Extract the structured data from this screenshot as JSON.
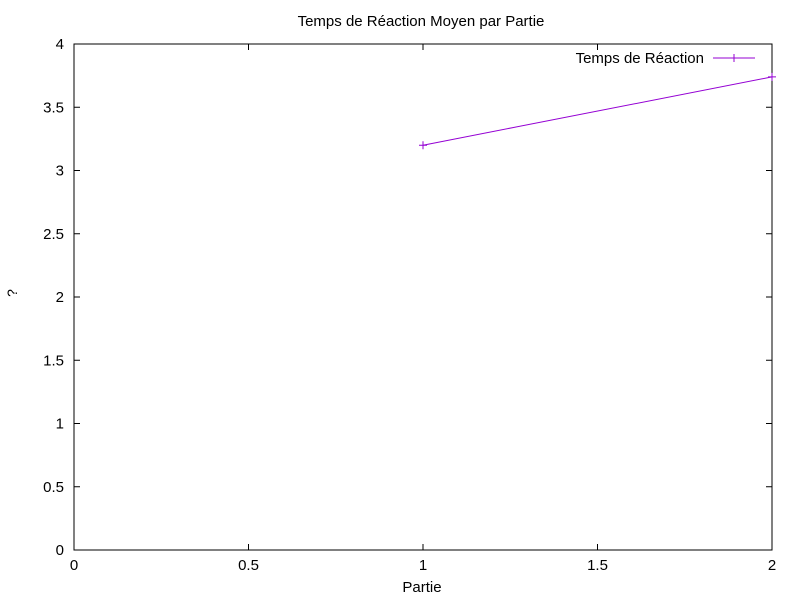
{
  "chart_data": {
    "type": "line",
    "title": "Temps de Réaction Moyen par Partie",
    "xlabel": "Partie",
    "ylabel": "?",
    "xlim": [
      0,
      2
    ],
    "ylim": [
      0,
      4
    ],
    "xticks": [
      {
        "value": 0,
        "label": "0"
      },
      {
        "value": 0.5,
        "label": "0.5"
      },
      {
        "value": 1,
        "label": "1"
      },
      {
        "value": 1.5,
        "label": "1.5"
      },
      {
        "value": 2,
        "label": "2"
      }
    ],
    "yticks": [
      {
        "value": 0,
        "label": "0"
      },
      {
        "value": 0.5,
        "label": "0.5"
      },
      {
        "value": 1,
        "label": "1"
      },
      {
        "value": 1.5,
        "label": "1.5"
      },
      {
        "value": 2,
        "label": "2"
      },
      {
        "value": 2.5,
        "label": "2.5"
      },
      {
        "value": 3,
        "label": "3"
      },
      {
        "value": 3.5,
        "label": "3.5"
      },
      {
        "value": 4,
        "label": "4"
      }
    ],
    "grid": false,
    "legend_position": "top-right",
    "series": [
      {
        "name": "Temps de Réaction",
        "color": "#9400d3",
        "marker": "plus",
        "points": [
          {
            "x": 1,
            "y": 3.2
          },
          {
            "x": 2,
            "y": 3.74
          }
        ]
      }
    ]
  }
}
